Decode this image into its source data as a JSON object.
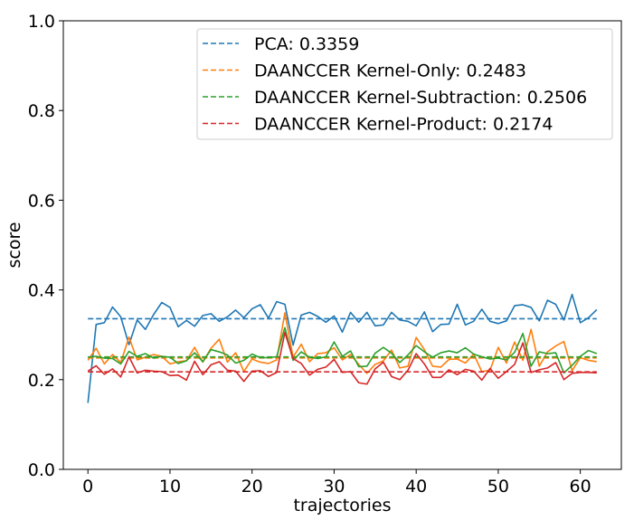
{
  "chart_data": {
    "type": "line",
    "xlabel": "trajectories",
    "ylabel": "score",
    "xlim": [
      -3,
      65
    ],
    "ylim": [
      0.0,
      1.0
    ],
    "xticks": [
      0,
      10,
      20,
      30,
      40,
      50,
      60
    ],
    "yticks": [
      0.0,
      0.2,
      0.4,
      0.6,
      0.8,
      1.0
    ],
    "x_tick_labels": [
      "0",
      "10",
      "20",
      "30",
      "40",
      "50",
      "60"
    ],
    "y_tick_labels": [
      "0.0",
      "0.2",
      "0.4",
      "0.6",
      "0.8",
      "1.0"
    ],
    "grid": false,
    "legend_position": "top-right",
    "legend_entries": [
      "PCA: 0.3359",
      "DAANCCER Kernel-Only: 0.2483",
      "DAANCCER Kernel-Subtraction: 0.2506",
      "DAANCCER Kernel-Product: 0.2174"
    ],
    "series": [
      {
        "name": "PCA",
        "color": "#1f77b4",
        "mean": 0.3359,
        "values": [
          0.148,
          0.323,
          0.327,
          0.362,
          0.34,
          0.278,
          0.333,
          0.312,
          0.345,
          0.372,
          0.361,
          0.318,
          0.332,
          0.319,
          0.343,
          0.347,
          0.33,
          0.34,
          0.355,
          0.338,
          0.358,
          0.367,
          0.337,
          0.374,
          0.368,
          0.277,
          0.344,
          0.35,
          0.341,
          0.328,
          0.342,
          0.306,
          0.35,
          0.328,
          0.35,
          0.32,
          0.322,
          0.35,
          0.333,
          0.33,
          0.32,
          0.351,
          0.307,
          0.323,
          0.324,
          0.368,
          0.322,
          0.33,
          0.357,
          0.33,
          0.325,
          0.331,
          0.365,
          0.367,
          0.361,
          0.331,
          0.377,
          0.368,
          0.333,
          0.39,
          0.327,
          0.338,
          0.356
        ]
      },
      {
        "name": "DAANCCER Kernel-Only",
        "color": "#ff7f0e",
        "mean": 0.2483,
        "values": [
          0.243,
          0.27,
          0.235,
          0.256,
          0.238,
          0.295,
          0.244,
          0.25,
          0.256,
          0.252,
          0.235,
          0.24,
          0.242,
          0.272,
          0.239,
          0.27,
          0.29,
          0.239,
          0.26,
          0.218,
          0.246,
          0.239,
          0.236,
          0.244,
          0.349,
          0.25,
          0.279,
          0.24,
          0.258,
          0.26,
          0.271,
          0.244,
          0.256,
          0.234,
          0.214,
          0.234,
          0.242,
          0.266,
          0.226,
          0.23,
          0.294,
          0.267,
          0.23,
          0.228,
          0.245,
          0.246,
          0.237,
          0.257,
          0.218,
          0.221,
          0.272,
          0.237,
          0.284,
          0.243,
          0.312,
          0.23,
          0.262,
          0.275,
          0.285,
          0.22,
          0.249,
          0.243,
          0.24
        ]
      },
      {
        "name": "DAANCCER Kernel-Subtraction",
        "color": "#2ca02c",
        "mean": 0.2506,
        "values": [
          0.25,
          0.252,
          0.248,
          0.247,
          0.235,
          0.263,
          0.252,
          0.258,
          0.248,
          0.252,
          0.25,
          0.236,
          0.242,
          0.26,
          0.24,
          0.267,
          0.262,
          0.255,
          0.237,
          0.243,
          0.257,
          0.249,
          0.249,
          0.251,
          0.316,
          0.243,
          0.262,
          0.25,
          0.247,
          0.251,
          0.284,
          0.252,
          0.264,
          0.229,
          0.23,
          0.259,
          0.272,
          0.259,
          0.238,
          0.255,
          0.276,
          0.262,
          0.25,
          0.26,
          0.264,
          0.26,
          0.271,
          0.257,
          0.251,
          0.246,
          0.248,
          0.244,
          0.261,
          0.303,
          0.23,
          0.262,
          0.258,
          0.26,
          0.215,
          0.232,
          0.252,
          0.265,
          0.258
        ]
      },
      {
        "name": "DAANCCER Kernel-Product",
        "color": "#d62728",
        "mean": 0.2174,
        "values": [
          0.219,
          0.231,
          0.212,
          0.224,
          0.206,
          0.251,
          0.215,
          0.221,
          0.219,
          0.218,
          0.209,
          0.21,
          0.199,
          0.241,
          0.211,
          0.233,
          0.24,
          0.221,
          0.219,
          0.196,
          0.219,
          0.22,
          0.207,
          0.216,
          0.305,
          0.247,
          0.236,
          0.21,
          0.223,
          0.228,
          0.245,
          0.216,
          0.218,
          0.193,
          0.19,
          0.224,
          0.239,
          0.207,
          0.2,
          0.221,
          0.258,
          0.235,
          0.205,
          0.205,
          0.222,
          0.211,
          0.223,
          0.219,
          0.199,
          0.225,
          0.203,
          0.218,
          0.234,
          0.282,
          0.216,
          0.222,
          0.226,
          0.238,
          0.2,
          0.214,
          0.216,
          0.216,
          0.215
        ]
      }
    ]
  }
}
